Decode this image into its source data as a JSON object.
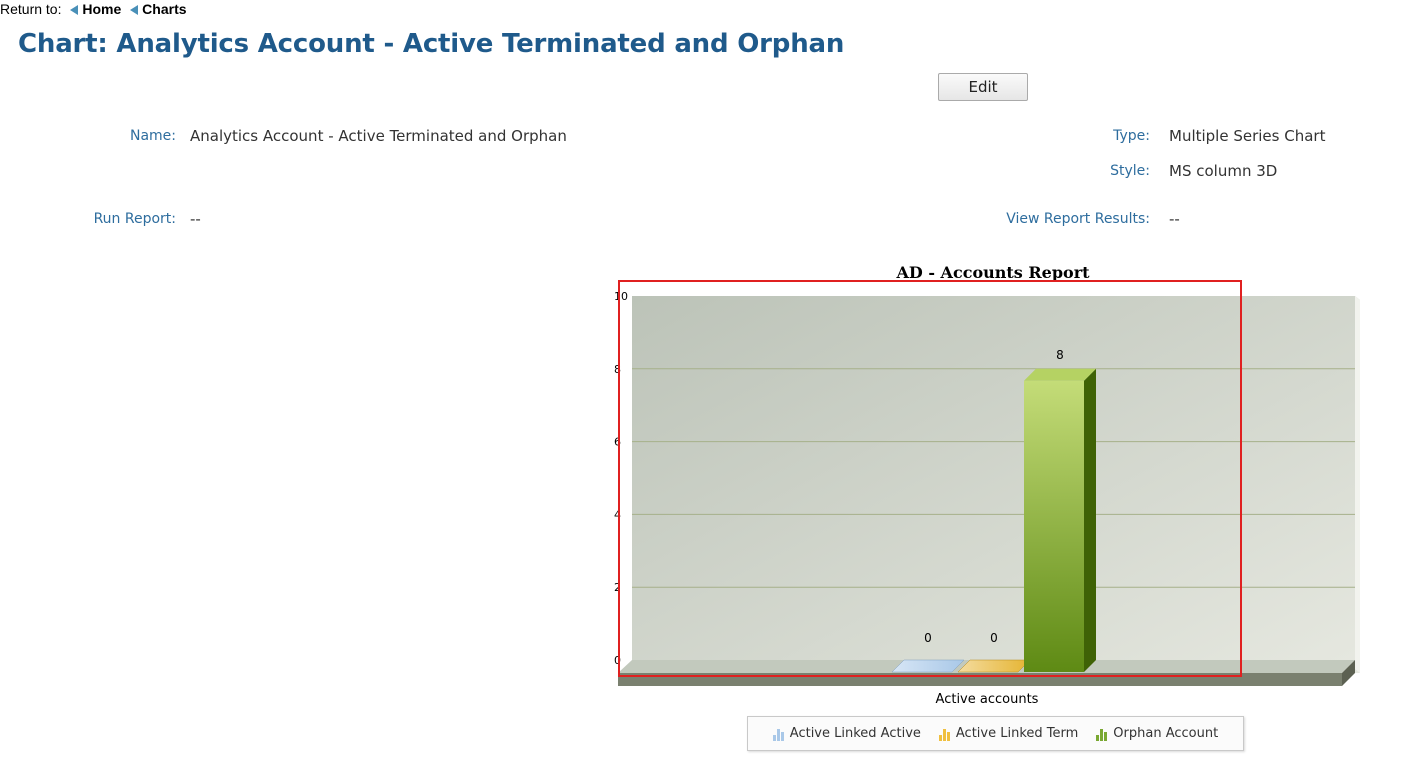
{
  "breadcrumb": {
    "prefix": "Return to:",
    "home": "Home",
    "charts": "Charts"
  },
  "page_title": "Chart: Analytics Account - Active Terminated and Orphan",
  "edit_label": "Edit",
  "details": {
    "name_label": "Name:",
    "name_value": "Analytics Account - Active Terminated and Orphan",
    "type_label": "Type:",
    "type_value": "Multiple Series Chart",
    "style_label": "Style:",
    "style_value": "MS column 3D",
    "run_label": "Run Report:",
    "run_value": "--",
    "view_label": "View Report Results:",
    "view_value": "--"
  },
  "colors": {
    "title": "#1f5a8b",
    "label": "#2e6d9e",
    "highlight": "#e02020",
    "series": [
      "#a9c8e8",
      "#f0c040",
      "#7aa832"
    ]
  },
  "chart_data": {
    "type": "bar",
    "style": "3d-column",
    "title": "AD - Accounts Report",
    "categories": [
      "Active accounts"
    ],
    "series": [
      {
        "name": "Active Linked Active",
        "values": [
          0
        ]
      },
      {
        "name": "Active Linked Term",
        "values": [
          0
        ]
      },
      {
        "name": "Orphan Account",
        "values": [
          8
        ]
      }
    ],
    "ylim": [
      0,
      10
    ],
    "yticks": [
      0,
      2,
      4,
      6,
      8,
      10
    ],
    "grid": true,
    "legend": "bottom",
    "data_labels": true
  }
}
